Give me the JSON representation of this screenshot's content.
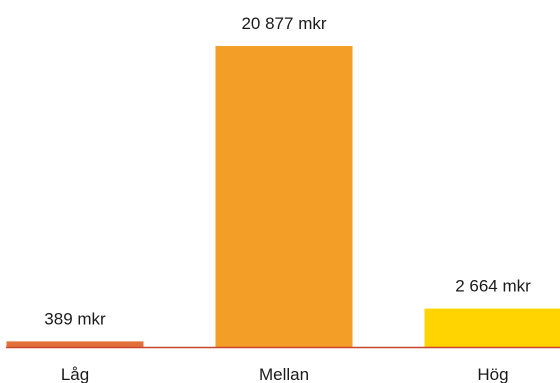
{
  "chart_data": {
    "type": "bar",
    "categories": [
      "Låg",
      "Mellan",
      "Hög"
    ],
    "values": [
      389,
      20877,
      2664
    ],
    "value_labels": [
      "389 mkr",
      "20 877 mkr",
      "2 664 mkr"
    ],
    "colors": [
      "#E2703A",
      "#F29E27",
      "#FFD400"
    ],
    "baseline_color": "#C8462E",
    "ylim": [
      0,
      20877
    ],
    "grid": false,
    "legend": "none"
  }
}
